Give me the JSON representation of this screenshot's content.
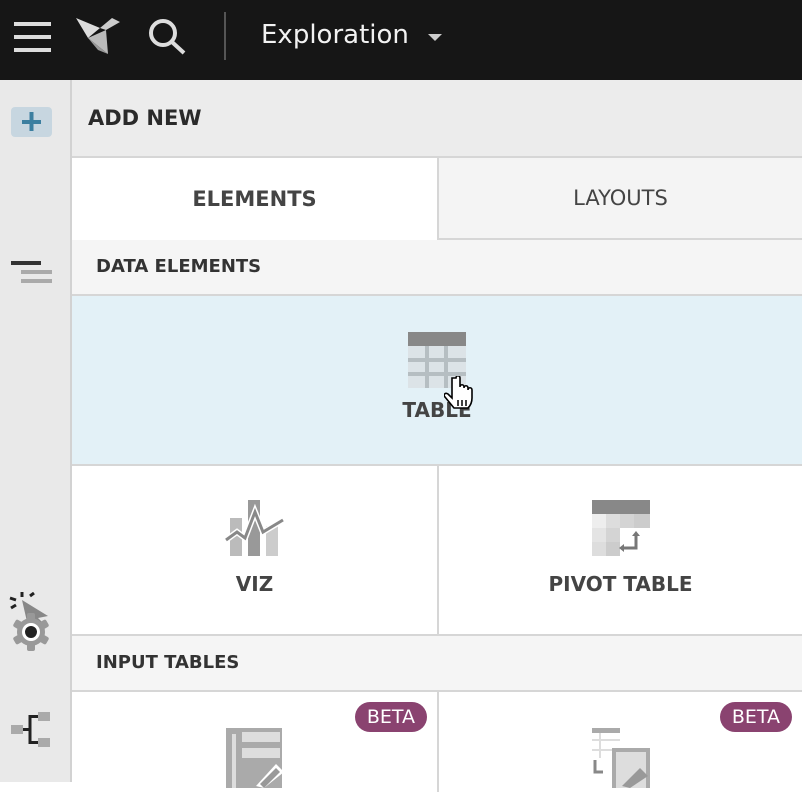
{
  "topbar": {
    "title": "Exploration",
    "icons": [
      "menu-icon",
      "logo-icon",
      "search-icon",
      "caret-down-icon"
    ]
  },
  "sidebar": {
    "icons": [
      "add-icon",
      "outline-icon",
      "interaction-icon",
      "settings-icon",
      "lineage-icon"
    ],
    "accent": "#3c7fa0"
  },
  "panel": {
    "header": "ADD NEW",
    "tabs": [
      {
        "label": "ELEMENTS",
        "active": true
      },
      {
        "label": "LAYOUTS",
        "active": false
      }
    ],
    "sections": [
      {
        "title": "DATA ELEMENTS",
        "items": [
          {
            "label": "TABLE",
            "hovered": true
          },
          {
            "label": "VIZ"
          },
          {
            "label": "PIVOT TABLE"
          }
        ]
      },
      {
        "title": "INPUT TABLES",
        "items": [
          {
            "badge": "BETA"
          },
          {
            "badge": "BETA"
          }
        ]
      }
    ],
    "badge_color": "#8a4370",
    "hover_color": "#e3f1f7"
  }
}
